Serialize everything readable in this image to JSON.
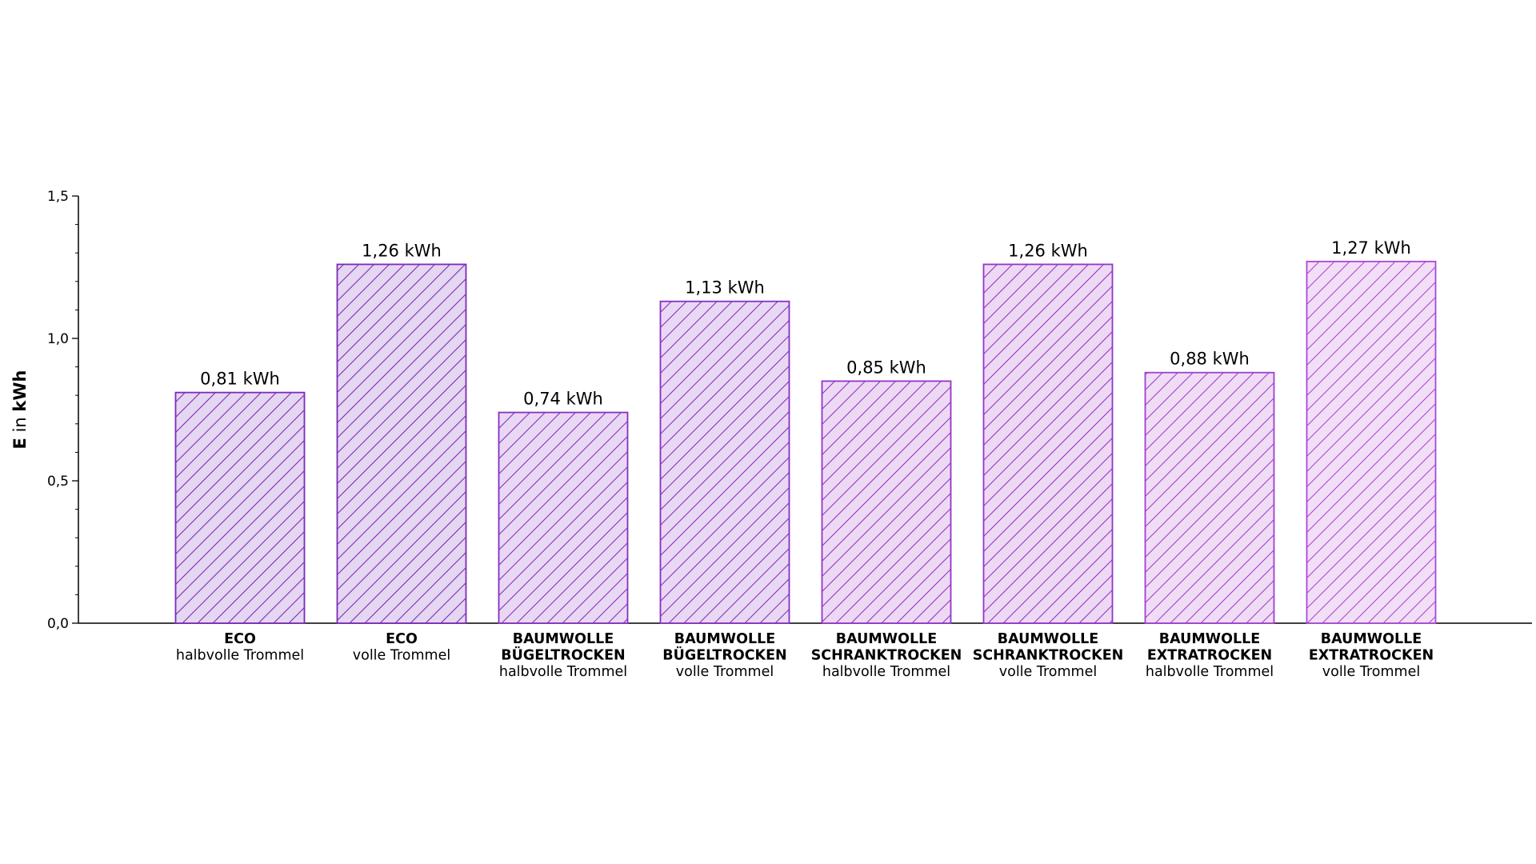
{
  "chart_data": {
    "type": "bar",
    "ylabel_bold": "E",
    "ylabel_mid": " in ",
    "ylabel_unit": "kWh",
    "ylim": [
      0,
      1.5
    ],
    "yticks": [
      {
        "value": 0.0,
        "label": "0,0"
      },
      {
        "value": 0.5,
        "label": "0,5"
      },
      {
        "value": 1.0,
        "label": "1,0"
      },
      {
        "value": 1.5,
        "label": "1,5"
      }
    ],
    "categories": [
      {
        "lines_bold": [
          "ECO"
        ],
        "line_sub": "halbvolle Trommel"
      },
      {
        "lines_bold": [
          "ECO"
        ],
        "line_sub": "volle Trommel"
      },
      {
        "lines_bold": [
          "BAUMWOLLE",
          "BÜGELTROCKEN"
        ],
        "line_sub": "halbvolle Trommel"
      },
      {
        "lines_bold": [
          "BAUMWOLLE",
          "BÜGELTROCKEN"
        ],
        "line_sub": "volle Trommel"
      },
      {
        "lines_bold": [
          "BAUMWOLLE",
          "SCHRANKTROCKEN"
        ],
        "line_sub": "halbvolle Trommel"
      },
      {
        "lines_bold": [
          "BAUMWOLLE",
          "SCHRANKTROCKEN"
        ],
        "line_sub": "volle Trommel"
      },
      {
        "lines_bold": [
          "BAUMWOLLE",
          "EXTRATROCKEN"
        ],
        "line_sub": "halbvolle Trommel"
      },
      {
        "lines_bold": [
          "BAUMWOLLE",
          "EXTRATROCKEN"
        ],
        "line_sub": "volle Trommel"
      }
    ],
    "values": [
      0.81,
      1.26,
      0.74,
      1.13,
      0.85,
      1.26,
      0.88,
      1.27
    ],
    "value_labels": [
      "0,81 kWh",
      "1,26 kWh",
      "0,74 kWh",
      "1,13 kWh",
      "0,85 kWh",
      "1,26 kWh",
      "0,88 kWh",
      "1,27 kWh"
    ],
    "bar_colors": [
      {
        "fill": "#e5d6f2",
        "stroke": "#7a2bb8"
      },
      {
        "fill": "#e5d6f2",
        "stroke": "#7a2bb8"
      },
      {
        "fill": "#e9d8f3",
        "stroke": "#8630c0"
      },
      {
        "fill": "#e9d8f3",
        "stroke": "#8630c0"
      },
      {
        "fill": "#edd9f4",
        "stroke": "#9235c8"
      },
      {
        "fill": "#edd9f4",
        "stroke": "#9235c8"
      },
      {
        "fill": "#f0dcf5",
        "stroke": "#a03fd0"
      },
      {
        "fill": "#f2def6",
        "stroke": "#aa48d8"
      }
    ],
    "grid": false
  }
}
